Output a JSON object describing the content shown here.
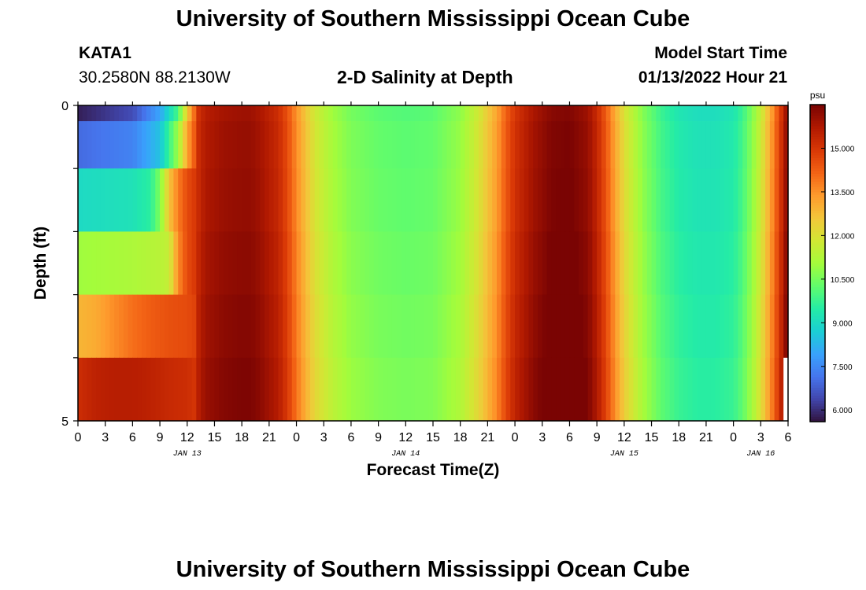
{
  "header": {
    "title": "University of Southern Mississippi Ocean Cube",
    "station": "KATA1",
    "coords": "30.2580N  88.2130W",
    "subtitle": "2-D Salinity at Depth",
    "model_start_label": "Model Start Time",
    "model_start_value": "01/13/2022 Hour 21"
  },
  "footer": {
    "title": "University of Southern Mississippi Ocean Cube"
  },
  "chart_data": {
    "type": "heatmap",
    "title": "2-D Salinity at Depth",
    "xlabel": "Forecast Time(Z)",
    "ylabel": "Depth (ft)",
    "colorbar_unit": "psu",
    "colorbar_range": [
      5.6,
      16.5
    ],
    "colorbar_ticks": [
      6.0,
      7.5,
      9.0,
      10.5,
      12.0,
      13.5,
      15.0
    ],
    "colorbar_tick_labels": [
      "6.000",
      "7.500",
      "9.000",
      "10.500",
      "12.000",
      "13.500",
      "15.000"
    ],
    "colormap": [
      "#30123b",
      "#4145ab",
      "#4675ed",
      "#39a2fc",
      "#1bcfd4",
      "#24eca6",
      "#61fc6c",
      "#a4fc3b",
      "#d1e834",
      "#f3c63a",
      "#fe9b2d",
      "#f36315",
      "#d93806",
      "#b11901",
      "#7a0403"
    ],
    "ylim": [
      0,
      5
    ],
    "y_tick_labels": [
      "0",
      "5"
    ],
    "xlim": [
      0,
      78
    ],
    "x_ticks": [
      0,
      3,
      6,
      9,
      12,
      15,
      18,
      21,
      24,
      27,
      30,
      33,
      36,
      39,
      42,
      45,
      48,
      51,
      54,
      57,
      60,
      63,
      66,
      69,
      72,
      75,
      78
    ],
    "x_tick_labels": [
      "0",
      "3",
      "6",
      "9",
      "12",
      "15",
      "18",
      "21",
      "0",
      "3",
      "6",
      "9",
      "12",
      "15",
      "18",
      "21",
      "0",
      "3",
      "6",
      "9",
      "12",
      "15",
      "18",
      "21",
      "0",
      "3",
      "6"
    ],
    "date_labels": [
      {
        "x": 12,
        "label": "JAN 13"
      },
      {
        "x": 36,
        "label": "JAN 14"
      },
      {
        "x": 60,
        "label": "JAN 15"
      },
      {
        "x": 75,
        "label": "JAN 16"
      }
    ],
    "depth_layers_ft": [
      0,
      0.5,
      1.5,
      2.5,
      3.5,
      4.5
    ],
    "surface_profile": {
      "x": [
        0,
        2,
        4,
        6,
        8,
        9,
        10,
        11,
        12,
        13,
        14,
        16,
        18,
        19,
        20,
        22,
        23,
        24,
        25,
        26,
        28,
        30,
        33,
        36,
        39,
        42,
        44,
        46,
        47,
        48,
        50,
        52,
        54,
        56,
        57,
        58,
        59,
        60,
        62,
        64,
        66,
        68,
        70,
        72,
        73,
        74,
        75,
        76,
        77,
        78
      ],
      "values": [
        5.8,
        6.3,
        7.2,
        8.2,
        9.4,
        10.4,
        11.6,
        12.8,
        14.1,
        15.0,
        15.6,
        15.9,
        16.0,
        16.0,
        15.8,
        15.2,
        14.5,
        13.5,
        12.6,
        11.8,
        11.0,
        10.5,
        10.2,
        10.1,
        10.2,
        10.8,
        11.8,
        13.2,
        14.2,
        15.0,
        15.8,
        16.3,
        16.4,
        16.0,
        15.3,
        14.3,
        13.1,
        12.0,
        10.7,
        9.8,
        9.3,
        9.1,
        9.1,
        9.3,
        9.8,
        10.6,
        11.6,
        13.0,
        14.6,
        16.3
      ]
    },
    "layer_adjust": [
      0,
      0.1,
      0.15,
      0.25,
      0.35,
      0.45
    ],
    "deep_early_layers": [
      {
        "x": [
          0,
          6,
          9,
          11,
          12,
          13
        ],
        "values": [
          5.8,
          6.5,
          8.0,
          10.0,
          12.5,
          14.5
        ]
      },
      {
        "x": [
          0,
          6,
          9,
          11,
          12,
          13
        ],
        "values": [
          7.0,
          7.4,
          8.5,
          11.0,
          13.2,
          14.6
        ]
      },
      {
        "x": [
          0,
          6,
          8,
          9,
          10,
          11,
          12,
          13
        ],
        "values": [
          9.0,
          9.2,
          9.6,
          10.6,
          12.6,
          13.8,
          14.6,
          15.0
        ]
      },
      {
        "x": [
          0,
          6,
          9,
          10,
          11,
          12,
          13
        ],
        "values": [
          11.0,
          11.2,
          11.4,
          11.6,
          13.6,
          14.6,
          15.0
        ]
      },
      {
        "x": [
          0,
          2,
          4,
          6,
          8,
          10,
          12,
          13
        ],
        "values": [
          12.9,
          13.1,
          13.6,
          14.0,
          14.3,
          14.5,
          14.6,
          14.8
        ]
      },
      {
        "x": [
          0,
          2,
          4,
          6,
          8,
          10,
          12,
          13
        ],
        "values": [
          15.2,
          15.5,
          15.6,
          15.6,
          15.5,
          15.3,
          15.2,
          15.0
        ]
      }
    ],
    "missing_cells": [
      {
        "x_from": 77.5,
        "x_to": 78,
        "layer": 5
      }
    ]
  }
}
